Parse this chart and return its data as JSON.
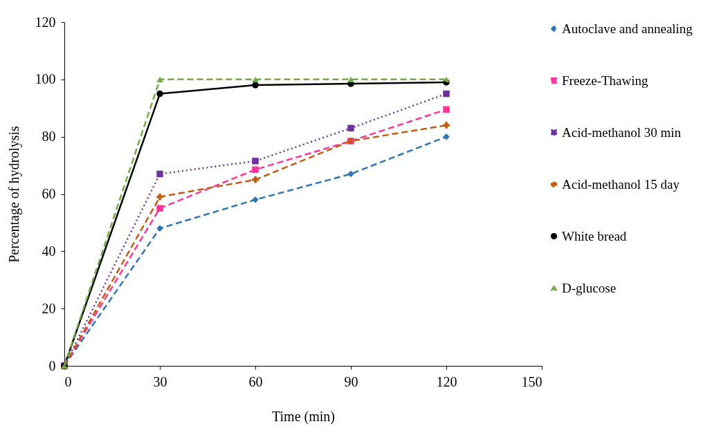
{
  "chart_data": {
    "type": "line",
    "xlabel": "Time (min)",
    "ylabel": "Percentage of hydrolysis",
    "x": [
      0,
      30,
      60,
      90,
      120
    ],
    "xlim": [
      0,
      150
    ],
    "xticks": [
      0,
      30,
      60,
      90,
      120,
      150
    ],
    "ylim": [
      0,
      120
    ],
    "yticks": [
      0,
      20,
      40,
      60,
      80,
      100,
      120
    ],
    "grid": false,
    "legend": "right",
    "series": [
      {
        "name": "Autoclave and annealing",
        "color": "#2e75b6",
        "marker": "diamond",
        "line_style": "dashed",
        "values": [
          0,
          48,
          58,
          67,
          80
        ]
      },
      {
        "name": "Freeze-Thawing",
        "color": "#ff3399",
        "marker": "square",
        "line_style": "dashed",
        "values": [
          0,
          55,
          68.5,
          78.5,
          89.5
        ]
      },
      {
        "name": "Acid-methanol 30 min",
        "color": "#7030a0",
        "marker": "square",
        "line_style": "dotted",
        "values": [
          0,
          67,
          71.5,
          83,
          95
        ]
      },
      {
        "name": "Acid-methanol 15 day",
        "color": "#c55a11",
        "marker": "cross",
        "line_style": "dashed",
        "values": [
          0,
          59,
          65,
          78.5,
          84
        ]
      },
      {
        "name": "White bread",
        "color": "#000000",
        "marker": "circle",
        "line_style": "solid",
        "values": [
          0,
          95,
          98,
          98.5,
          99
        ]
      },
      {
        "name": "D-glucose",
        "color": "#70ad47",
        "marker": "triangle",
        "line_style": "dashed",
        "values": [
          0,
          100,
          100,
          100,
          100
        ]
      }
    ]
  }
}
